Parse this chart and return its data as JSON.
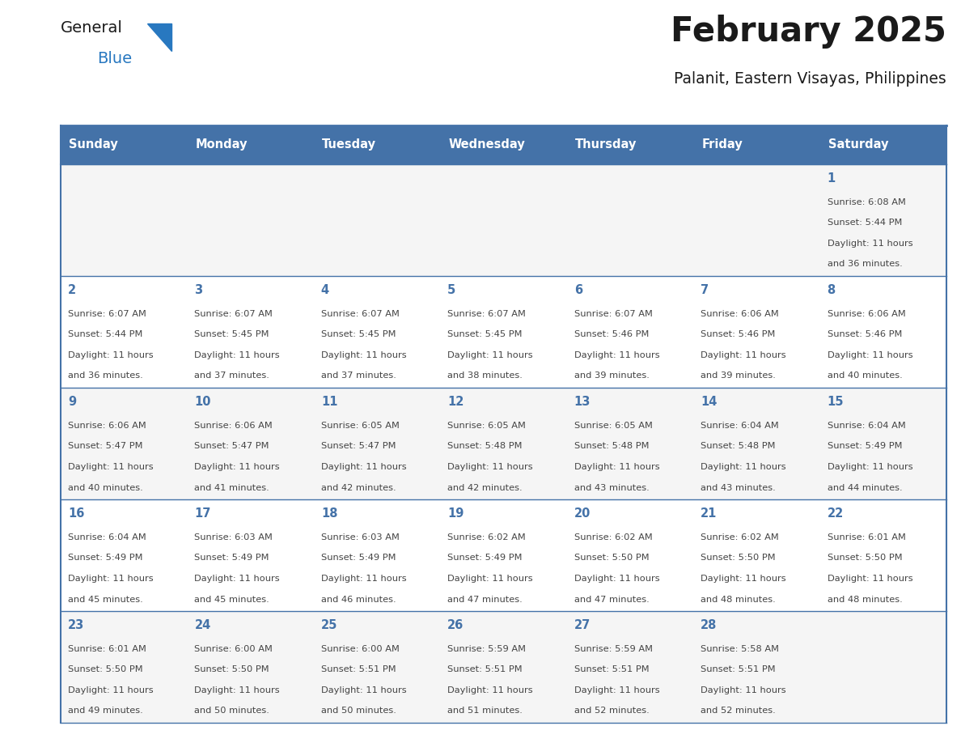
{
  "title": "February 2025",
  "subtitle": "Palanit, Eastern Visayas, Philippines",
  "days_of_week": [
    "Sunday",
    "Monday",
    "Tuesday",
    "Wednesday",
    "Thursday",
    "Friday",
    "Saturday"
  ],
  "header_bg": "#4472a8",
  "header_text": "#ffffff",
  "cell_bg_odd": "#f5f5f5",
  "cell_bg_even": "#ffffff",
  "border_color": "#4472a8",
  "row_line_color": "#4472a8",
  "day_num_color": "#4472a8",
  "text_color": "#444444",
  "logo_general_color": "#1a1a1a",
  "logo_blue_color": "#2878c0",
  "title_color": "#1a1a1a",
  "subtitle_color": "#1a1a1a",
  "calendar_data": [
    [
      null,
      null,
      null,
      null,
      null,
      null,
      {
        "day": 1,
        "sunrise": "6:08 AM",
        "sunset": "5:44 PM",
        "daylight": "11 hours and 36 minutes."
      }
    ],
    [
      {
        "day": 2,
        "sunrise": "6:07 AM",
        "sunset": "5:44 PM",
        "daylight": "11 hours and 36 minutes."
      },
      {
        "day": 3,
        "sunrise": "6:07 AM",
        "sunset": "5:45 PM",
        "daylight": "11 hours and 37 minutes."
      },
      {
        "day": 4,
        "sunrise": "6:07 AM",
        "sunset": "5:45 PM",
        "daylight": "11 hours and 37 minutes."
      },
      {
        "day": 5,
        "sunrise": "6:07 AM",
        "sunset": "5:45 PM",
        "daylight": "11 hours and 38 minutes."
      },
      {
        "day": 6,
        "sunrise": "6:07 AM",
        "sunset": "5:46 PM",
        "daylight": "11 hours and 39 minutes."
      },
      {
        "day": 7,
        "sunrise": "6:06 AM",
        "sunset": "5:46 PM",
        "daylight": "11 hours and 39 minutes."
      },
      {
        "day": 8,
        "sunrise": "6:06 AM",
        "sunset": "5:46 PM",
        "daylight": "11 hours and 40 minutes."
      }
    ],
    [
      {
        "day": 9,
        "sunrise": "6:06 AM",
        "sunset": "5:47 PM",
        "daylight": "11 hours and 40 minutes."
      },
      {
        "day": 10,
        "sunrise": "6:06 AM",
        "sunset": "5:47 PM",
        "daylight": "11 hours and 41 minutes."
      },
      {
        "day": 11,
        "sunrise": "6:05 AM",
        "sunset": "5:47 PM",
        "daylight": "11 hours and 42 minutes."
      },
      {
        "day": 12,
        "sunrise": "6:05 AM",
        "sunset": "5:48 PM",
        "daylight": "11 hours and 42 minutes."
      },
      {
        "day": 13,
        "sunrise": "6:05 AM",
        "sunset": "5:48 PM",
        "daylight": "11 hours and 43 minutes."
      },
      {
        "day": 14,
        "sunrise": "6:04 AM",
        "sunset": "5:48 PM",
        "daylight": "11 hours and 43 minutes."
      },
      {
        "day": 15,
        "sunrise": "6:04 AM",
        "sunset": "5:49 PM",
        "daylight": "11 hours and 44 minutes."
      }
    ],
    [
      {
        "day": 16,
        "sunrise": "6:04 AM",
        "sunset": "5:49 PM",
        "daylight": "11 hours and 45 minutes."
      },
      {
        "day": 17,
        "sunrise": "6:03 AM",
        "sunset": "5:49 PM",
        "daylight": "11 hours and 45 minutes."
      },
      {
        "day": 18,
        "sunrise": "6:03 AM",
        "sunset": "5:49 PM",
        "daylight": "11 hours and 46 minutes."
      },
      {
        "day": 19,
        "sunrise": "6:02 AM",
        "sunset": "5:49 PM",
        "daylight": "11 hours and 47 minutes."
      },
      {
        "day": 20,
        "sunrise": "6:02 AM",
        "sunset": "5:50 PM",
        "daylight": "11 hours and 47 minutes."
      },
      {
        "day": 21,
        "sunrise": "6:02 AM",
        "sunset": "5:50 PM",
        "daylight": "11 hours and 48 minutes."
      },
      {
        "day": 22,
        "sunrise": "6:01 AM",
        "sunset": "5:50 PM",
        "daylight": "11 hours and 48 minutes."
      }
    ],
    [
      {
        "day": 23,
        "sunrise": "6:01 AM",
        "sunset": "5:50 PM",
        "daylight": "11 hours and 49 minutes."
      },
      {
        "day": 24,
        "sunrise": "6:00 AM",
        "sunset": "5:50 PM",
        "daylight": "11 hours and 50 minutes."
      },
      {
        "day": 25,
        "sunrise": "6:00 AM",
        "sunset": "5:51 PM",
        "daylight": "11 hours and 50 minutes."
      },
      {
        "day": 26,
        "sunrise": "5:59 AM",
        "sunset": "5:51 PM",
        "daylight": "11 hours and 51 minutes."
      },
      {
        "day": 27,
        "sunrise": "5:59 AM",
        "sunset": "5:51 PM",
        "daylight": "11 hours and 52 minutes."
      },
      {
        "day": 28,
        "sunrise": "5:58 AM",
        "sunset": "5:51 PM",
        "daylight": "11 hours and 52 minutes."
      },
      null
    ]
  ]
}
